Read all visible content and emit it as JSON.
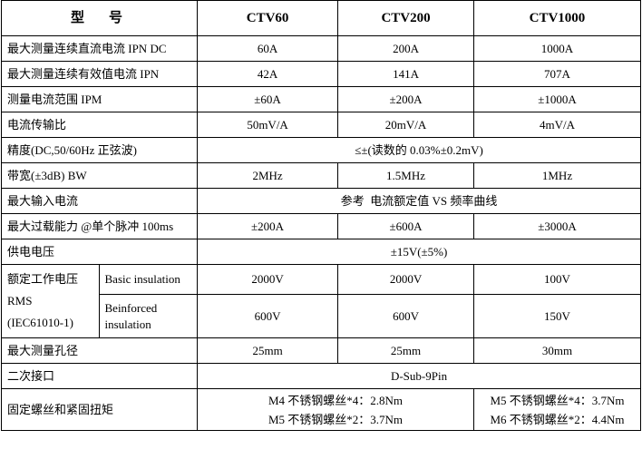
{
  "table": {
    "header": [
      "型　号",
      "CTV60",
      "CTV200",
      "CTV1000"
    ],
    "rows": [
      [
        "最大测量连续直流电流 IPN DC",
        "60A",
        "200A",
        "1000A"
      ],
      [
        "最大测量连续有效值电流 IPN",
        "42A",
        "141A",
        "707A"
      ],
      [
        "测量电流范围 IPM",
        "±60A",
        "±200A",
        "±1000A"
      ],
      [
        "电流传输比",
        "50mV/A",
        "20mV/A",
        "4mV/A"
      ],
      [
        "精度(DC,50/60Hz 正弦波)",
        "≤±(读数的 0.03%±0.2mV)"
      ],
      [
        "带宽(±3dB) BW",
        "2MHz",
        "1.5MHz",
        "1MHz"
      ],
      [
        "最大输入电流",
        "参考  电流额定值 VS 频率曲线"
      ],
      [
        "最大过载能力 @单个脉冲 100ms",
        "±200A",
        "±600A",
        "±3000A"
      ],
      [
        "供电电压",
        "±15V(±5%)"
      ]
    ],
    "voltage": {
      "label": [
        "额定工作电压",
        "RMS",
        "(IEC61010-1)"
      ],
      "rows": [
        [
          "Basic insulation",
          "2000V",
          "2000V",
          "100V"
        ],
        [
          "Beinforced insulation",
          "600V",
          "600V",
          "150V"
        ]
      ]
    },
    "rows2": [
      [
        "最大测量孔径",
        "25mm",
        "25mm",
        "30mm"
      ],
      [
        "二次接口",
        "D-Sub-9Pin"
      ]
    ],
    "torque": {
      "label": "固定螺丝和紧固扭矩",
      "groups": [
        [
          "M4 不锈钢螺丝*4：2.8Nm",
          "M5 不锈钢螺丝*2：3.7Nm"
        ],
        [
          "M5 不锈钢螺丝*4：3.7Nm",
          "M6 不锈钢螺丝*2：4.4Nm"
        ]
      ]
    }
  }
}
